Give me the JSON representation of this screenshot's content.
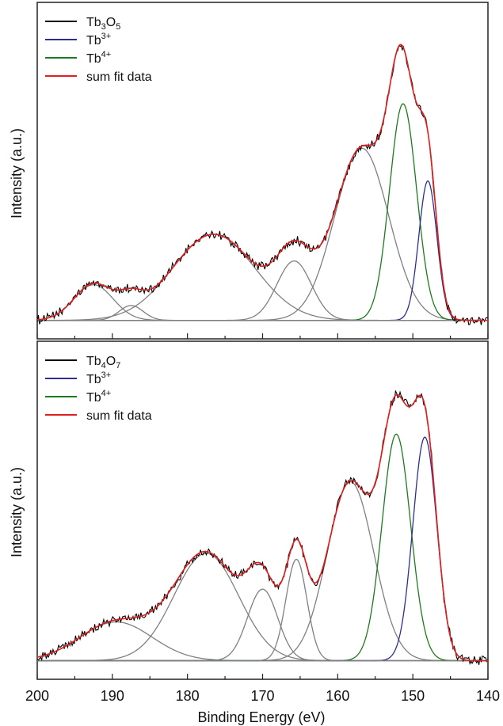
{
  "chart_data": [
    {
      "type": "line",
      "xlabel": "Binding Energy (eV)",
      "ylabel": "Intensity (a.u.)",
      "xlim": [
        200,
        140
      ],
      "x_reversed": true,
      "ylim": [
        0,
        1.05
      ],
      "y_ticks_labeled": false,
      "legend_position": "top-left",
      "legend": [
        {
          "label": "Tb",
          "sub": "3",
          "mid": "O",
          "sub2": "5",
          "color": "#000000"
        },
        {
          "label": "Tb",
          "sup": "3+",
          "color": "#2e2e8f"
        },
        {
          "label": "Tb",
          "sup": "4+",
          "color": "#1e7a1e"
        },
        {
          "label": "sum fit data",
          "color": "#e02020"
        }
      ],
      "peaks": [
        {
          "center": 192.5,
          "height": 0.12,
          "width": 2.6,
          "color": "#808080"
        },
        {
          "center": 187.5,
          "height": 0.05,
          "width": 1.6,
          "color": "#808080"
        },
        {
          "center": 176.5,
          "height": 0.29,
          "width": 5.5,
          "color": "#808080"
        },
        {
          "center": 165.8,
          "height": 0.2,
          "width": 2.3,
          "color": "#808080"
        },
        {
          "center": 156.8,
          "height": 0.58,
          "width": 3.6,
          "color": "#808080"
        },
        {
          "center": 151.3,
          "height": 0.73,
          "width": 1.8,
          "color": "#1e7a1e"
        },
        {
          "center": 148.0,
          "height": 0.47,
          "width": 1.2,
          "color": "#2e2e8f"
        }
      ],
      "noise_amplitude": 0.012
    },
    {
      "type": "line",
      "xlabel": "Binding Energy (eV)",
      "ylabel": "Intensity (a.u.)",
      "xlim": [
        200,
        140
      ],
      "x_reversed": true,
      "ylim": [
        0,
        1.05
      ],
      "y_ticks_labeled": false,
      "x_ticks": [
        200,
        190,
        180,
        170,
        160,
        150,
        140
      ],
      "legend_position": "top-left",
      "legend": [
        {
          "label": "Tb",
          "sub": "4",
          "mid": "O",
          "sub2": "7",
          "color": "#000000"
        },
        {
          "label": "Tb",
          "sup": "3+",
          "color": "#2e2e8f"
        },
        {
          "label": "Tb",
          "sup": "4+",
          "color": "#1e7a1e"
        },
        {
          "label": "sum fit data",
          "color": "#e02020"
        }
      ],
      "peaks": [
        {
          "center": 189.5,
          "height": 0.13,
          "width": 4.8,
          "color": "#808080"
        },
        {
          "center": 177.5,
          "height": 0.36,
          "width": 4.3,
          "color": "#808080"
        },
        {
          "center": 170.0,
          "height": 0.24,
          "width": 2.0,
          "color": "#808080"
        },
        {
          "center": 165.5,
          "height": 0.34,
          "width": 1.4,
          "color": "#808080"
        },
        {
          "center": 158.3,
          "height": 0.6,
          "width": 3.1,
          "color": "#808080"
        },
        {
          "center": 152.2,
          "height": 0.76,
          "width": 1.9,
          "color": "#1e7a1e"
        },
        {
          "center": 148.4,
          "height": 0.75,
          "width": 1.6,
          "color": "#2e2e8f"
        }
      ],
      "noise_amplitude": 0.012
    }
  ]
}
